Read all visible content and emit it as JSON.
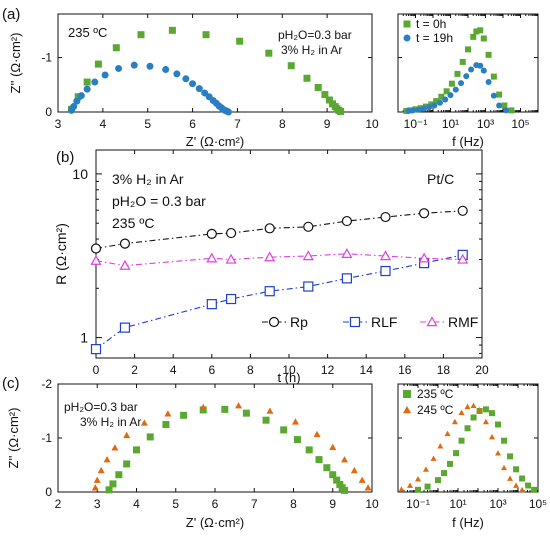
{
  "chart_data": [
    {
      "panel_label": "(a)",
      "type": "scatter",
      "xlabel": "Z' (Ω·cm²)",
      "ylabel": "Z'' (Ω·cm²)",
      "xlim": [
        3,
        10
      ],
      "ylim": [
        0,
        -1.8
      ],
      "xticks": [
        3,
        4,
        5,
        6,
        7,
        8,
        9,
        10
      ],
      "yticks": [
        0,
        -1
      ],
      "ytick_labels": [
        "0",
        "-1"
      ],
      "annotations": [
        "235 ºC",
        "pH₂O=0.3 bar",
        "3% H₂ in Ar"
      ],
      "series": [
        {
          "name": "t = 0h",
          "color": "#5aa832",
          "marker": "square",
          "x": [
            3.3,
            3.45,
            3.65,
            3.9,
            4.3,
            4.85,
            5.55,
            6.3,
            7.05,
            7.7,
            8.2,
            8.55,
            8.8,
            8.95,
            9.05,
            9.12,
            9.18,
            9.22,
            9.26,
            9.3
          ],
          "y": [
            -0.05,
            -0.28,
            -0.55,
            -0.88,
            -1.18,
            -1.42,
            -1.5,
            -1.42,
            -1.3,
            -1.08,
            -0.85,
            -0.62,
            -0.45,
            -0.32,
            -0.22,
            -0.15,
            -0.1,
            -0.06,
            -0.03,
            -0.01
          ]
        },
        {
          "name": "t = 19h",
          "color": "#2a7fc4",
          "marker": "circle",
          "x": [
            3.3,
            3.35,
            3.42,
            3.52,
            3.65,
            3.82,
            4.05,
            4.35,
            4.7,
            5.05,
            5.4,
            5.65,
            5.85,
            6.0,
            6.15,
            6.27,
            6.37,
            6.46,
            6.53,
            6.59,
            6.64,
            6.68,
            6.72,
            6.75,
            6.78,
            6.8
          ],
          "y": [
            -0.03,
            -0.1,
            -0.2,
            -0.3,
            -0.42,
            -0.55,
            -0.68,
            -0.8,
            -0.86,
            -0.84,
            -0.78,
            -0.7,
            -0.61,
            -0.52,
            -0.43,
            -0.35,
            -0.28,
            -0.21,
            -0.16,
            -0.11,
            -0.08,
            -0.05,
            -0.03,
            -0.02,
            -0.01,
            0.0
          ]
        }
      ]
    },
    {
      "type": "scatter",
      "xlabel": "f (Hz)",
      "xscale": "log",
      "xlim": [
        0.01,
        1000000
      ],
      "ylim": [
        0,
        -1.8
      ],
      "xtick_labels": [
        "10⁻¹",
        "10¹",
        "10³",
        "10⁵"
      ],
      "legend": [
        "t = 0h",
        "t = 19h"
      ],
      "legend_position": "top-left",
      "series": [
        {
          "name": "t = 0h",
          "color": "#5aa832",
          "marker": "square",
          "x": [
            0.03,
            0.05,
            0.1,
            0.2,
            0.4,
            0.8,
            1.5,
            3,
            6,
            12,
            25,
            50,
            100,
            200,
            300,
            500,
            800,
            1500,
            3000,
            6000,
            12000,
            30000
          ],
          "y": [
            -0.02,
            -0.03,
            -0.05,
            -0.07,
            -0.1,
            -0.14,
            -0.2,
            -0.28,
            -0.38,
            -0.52,
            -0.7,
            -0.92,
            -1.15,
            -1.38,
            -1.48,
            -1.5,
            -1.35,
            -1.05,
            -0.65,
            -0.32,
            -0.12,
            -0.03
          ]
        },
        {
          "name": "t = 19h",
          "color": "#2a7fc4",
          "marker": "circle",
          "x": [
            0.04,
            0.07,
            0.15,
            0.3,
            0.6,
            1.2,
            2.5,
            5,
            10,
            20,
            40,
            80,
            150,
            300,
            500,
            800,
            1500,
            3000,
            6000,
            15000
          ],
          "y": [
            -0.02,
            -0.03,
            -0.04,
            -0.06,
            -0.09,
            -0.12,
            -0.17,
            -0.23,
            -0.31,
            -0.41,
            -0.53,
            -0.66,
            -0.78,
            -0.86,
            -0.85,
            -0.76,
            -0.55,
            -0.3,
            -0.12,
            -0.03
          ]
        }
      ]
    },
    {
      "panel_label": "(b)",
      "type": "line",
      "xlabel": "t (h)",
      "ylabel": "R (Ω·cm²)",
      "yscale": "log",
      "xlim": [
        0,
        20
      ],
      "ylim": [
        0.75,
        14
      ],
      "xticks": [
        0,
        2,
        4,
        6,
        8,
        10,
        12,
        14,
        16,
        18,
        20
      ],
      "yticks": [
        1,
        10
      ],
      "annotations": [
        "3% H₂ in Ar",
        "pH₂O = 0.3 bar",
        "235 ºC",
        "Pt/C"
      ],
      "legend_position": "bottom-right",
      "series": [
        {
          "name": "Rp",
          "color": "#111111",
          "marker": "open-circle",
          "x": [
            0,
            1.5,
            6,
            7,
            9,
            11,
            13,
            15,
            17,
            19
          ],
          "y": [
            3.5,
            3.75,
            4.3,
            4.35,
            4.65,
            4.75,
            5.15,
            5.45,
            5.75,
            5.95
          ]
        },
        {
          "name": "RLF",
          "color": "#1f3fcf",
          "marker": "open-square",
          "x": [
            0,
            1.5,
            6,
            7,
            9,
            11,
            13,
            15,
            17,
            19
          ],
          "y": [
            0.85,
            1.15,
            1.6,
            1.72,
            1.92,
            2.05,
            2.3,
            2.55,
            2.85,
            3.2
          ]
        },
        {
          "name": "RMF",
          "color": "#e040e0",
          "marker": "open-triangle",
          "x": [
            0,
            1.5,
            6,
            7,
            9,
            11,
            13,
            15,
            17,
            19
          ],
          "y": [
            2.95,
            2.75,
            3.05,
            3.0,
            3.1,
            3.15,
            3.25,
            3.15,
            3.05,
            3.0
          ]
        }
      ]
    },
    {
      "panel_label": "(c)",
      "type": "scatter",
      "xlabel": "Z' (Ω·cm²)",
      "ylabel": "Z'' (Ω·cm²)",
      "xlim": [
        2,
        10
      ],
      "ylim": [
        0,
        -2
      ],
      "xticks": [
        2,
        3,
        4,
        5,
        6,
        7,
        8,
        9,
        10
      ],
      "yticks": [
        0,
        -1,
        -2
      ],
      "ytick_labels": [
        "0",
        "-1",
        "-2"
      ],
      "annotations": [
        "pH₂O=0.3 bar",
        "3% H₂ in Ar"
      ],
      "series": [
        {
          "name": "235 ºC",
          "color": "#5aa832",
          "marker": "square",
          "x": [
            3.3,
            3.4,
            3.55,
            3.75,
            4.0,
            4.35,
            4.75,
            5.2,
            5.7,
            6.25,
            6.8,
            7.3,
            7.75,
            8.1,
            8.4,
            8.65,
            8.85,
            9.0,
            9.1,
            9.18,
            9.24,
            9.3
          ],
          "y": [
            -0.04,
            -0.15,
            -0.32,
            -0.52,
            -0.78,
            -1.02,
            -1.25,
            -1.42,
            -1.52,
            -1.53,
            -1.46,
            -1.33,
            -1.15,
            -0.97,
            -0.78,
            -0.6,
            -0.45,
            -0.32,
            -0.22,
            -0.14,
            -0.08,
            -0.03
          ]
        },
        {
          "name": "245 ºC",
          "color": "#e06a10",
          "marker": "triangle",
          "x": [
            2.95,
            3.0,
            3.1,
            3.25,
            3.45,
            3.75,
            4.2,
            4.8,
            5.7,
            6.6,
            7.4,
            8.05,
            8.6,
            9.0,
            9.3,
            9.55,
            9.75,
            9.9
          ],
          "y": [
            -0.08,
            -0.22,
            -0.4,
            -0.6,
            -0.82,
            -1.05,
            -1.28,
            -1.45,
            -1.57,
            -1.6,
            -1.5,
            -1.3,
            -1.07,
            -0.83,
            -0.6,
            -0.4,
            -0.22,
            -0.08
          ]
        }
      ]
    },
    {
      "type": "scatter",
      "xlabel": "f (Hz)",
      "xscale": "log",
      "xlim": [
        0.01,
        100000
      ],
      "ylim": [
        0,
        -2
      ],
      "xtick_labels": [
        "10⁻¹",
        "10¹",
        "10³",
        "10⁵"
      ],
      "legend": [
        "235 ºC",
        "245 ºC"
      ],
      "legend_position": "top-left",
      "series": [
        {
          "name": "235 ºC",
          "color": "#5aa832",
          "marker": "square",
          "x": [
            0.1,
            0.3,
            1,
            2,
            4,
            8,
            15,
            30,
            60,
            120,
            250,
            500,
            1000,
            2000,
            4000,
            8000,
            16000,
            32000,
            64000
          ],
          "y": [
            -0.04,
            -0.1,
            -0.22,
            -0.35,
            -0.52,
            -0.72,
            -0.95,
            -1.18,
            -1.38,
            -1.5,
            -1.53,
            -1.46,
            -1.25,
            -0.95,
            -0.66,
            -0.42,
            -0.25,
            -0.12,
            -0.04
          ]
        },
        {
          "name": "245 ºC",
          "color": "#e06a10",
          "marker": "triangle",
          "x": [
            0.015,
            0.04,
            0.1,
            0.25,
            0.6,
            1.3,
            3,
            7,
            15,
            30,
            60,
            120,
            250,
            500,
            1000,
            2000,
            4000,
            8000,
            16000
          ],
          "y": [
            -0.05,
            -0.12,
            -0.24,
            -0.42,
            -0.62,
            -0.85,
            -1.08,
            -1.3,
            -1.47,
            -1.58,
            -1.6,
            -1.52,
            -1.3,
            -1.02,
            -0.72,
            -0.45,
            -0.25,
            -0.12,
            -0.04
          ]
        }
      ]
    }
  ]
}
